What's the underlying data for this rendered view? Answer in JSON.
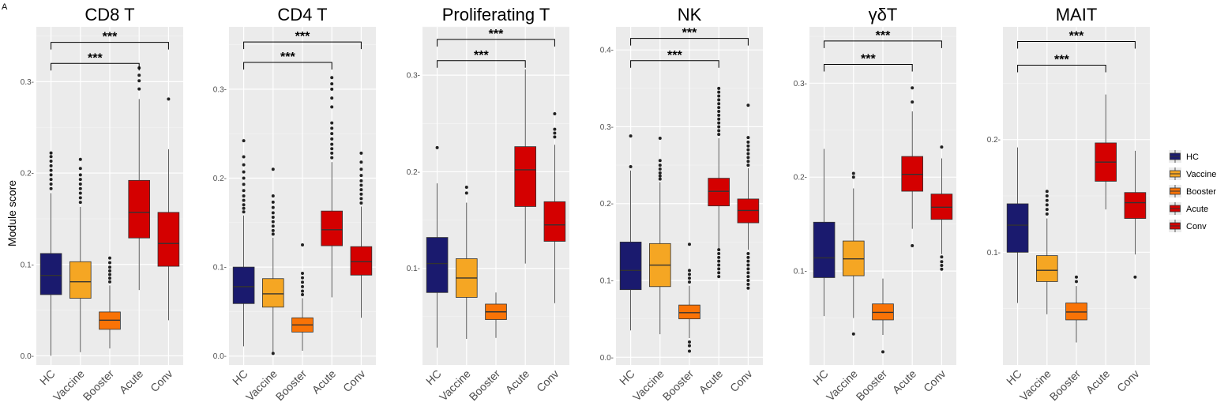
{
  "figure": {
    "panel_letter": "A",
    "ylabel": "Module score"
  },
  "colors": {
    "HC": "#1a1a6e",
    "Vaccine": "#f5a623",
    "Booster": "#f97306",
    "Acute": "#d40000",
    "Conv": "#d40000"
  },
  "legend": [
    "HC",
    "Vaccine",
    "Booster",
    "Acute",
    "Conv"
  ],
  "chart_data": [
    {
      "type": "boxplot",
      "title": "CD8 T",
      "categories": [
        "HC",
        "Vaccine",
        "Booster",
        "Acute",
        "Conv"
      ],
      "ylim": [
        -0.01,
        0.36
      ],
      "yticks": [
        0.0,
        0.1,
        0.2,
        0.3
      ],
      "ytick_labels": [
        "0.0-",
        "0.1-",
        "0.2-",
        "0.3-"
      ],
      "boxes": [
        {
          "lo": 0.0,
          "q1": 0.067,
          "med": 0.088,
          "q3": 0.112,
          "hi": 0.178,
          "outliers": [
            0.183,
            0.188,
            0.193,
            0.198,
            0.203,
            0.208,
            0.213,
            0.218,
            0.222
          ]
        },
        {
          "lo": 0.004,
          "q1": 0.063,
          "med": 0.081,
          "q3": 0.103,
          "hi": 0.163,
          "outliers": [
            0.168,
            0.173,
            0.178,
            0.183,
            0.188,
            0.193,
            0.198,
            0.205,
            0.215
          ]
        },
        {
          "lo": 0.008,
          "q1": 0.029,
          "med": 0.039,
          "q3": 0.048,
          "hi": 0.077,
          "outliers": [
            0.081,
            0.085,
            0.089,
            0.093,
            0.097,
            0.102,
            0.107
          ]
        },
        {
          "lo": 0.072,
          "q1": 0.129,
          "med": 0.157,
          "q3": 0.192,
          "hi": 0.281,
          "outliers": [
            0.292,
            0.301,
            0.307,
            0.315
          ]
        },
        {
          "lo": 0.039,
          "q1": 0.098,
          "med": 0.123,
          "q3": 0.157,
          "hi": 0.226,
          "outliers": [
            0.281
          ]
        }
      ],
      "brackets": [
        {
          "from": 0,
          "to": 4,
          "y": 0.343,
          "label": "***"
        },
        {
          "from": 0,
          "to": 3,
          "y": 0.32,
          "label": "***"
        }
      ]
    },
    {
      "type": "boxplot",
      "title": "CD4 T",
      "categories": [
        "HC",
        "Vaccine",
        "Booster",
        "Acute",
        "Conv"
      ],
      "ylim": [
        -0.01,
        0.37
      ],
      "yticks": [
        0.0,
        0.1,
        0.2,
        0.3
      ],
      "ytick_labels": [
        "0.0-",
        "0.1-",
        "0.2-",
        "0.3-"
      ],
      "boxes": [
        {
          "lo": 0.011,
          "q1": 0.059,
          "med": 0.078,
          "q3": 0.1,
          "hi": 0.158,
          "outliers": [
            0.162,
            0.166,
            0.17,
            0.175,
            0.18,
            0.186,
            0.193,
            0.2,
            0.207,
            0.215,
            0.224,
            0.242
          ]
        },
        {
          "lo": 0.004,
          "q1": 0.055,
          "med": 0.07,
          "q3": 0.087,
          "hi": 0.133,
          "outliers": [
            0.137,
            0.141,
            0.146,
            0.151,
            0.156,
            0.161,
            0.167,
            0.173,
            0.18,
            0.21,
            0.003
          ]
        },
        {
          "lo": 0.006,
          "q1": 0.027,
          "med": 0.035,
          "q3": 0.043,
          "hi": 0.065,
          "outliers": [
            0.069,
            0.073,
            0.078,
            0.083,
            0.088,
            0.093,
            0.125
          ]
        },
        {
          "lo": 0.066,
          "q1": 0.124,
          "med": 0.142,
          "q3": 0.163,
          "hi": 0.218,
          "outliers": [
            0.223,
            0.228,
            0.233,
            0.238,
            0.244,
            0.25,
            0.256,
            0.262,
            0.28,
            0.29,
            0.3,
            0.306,
            0.313
          ]
        },
        {
          "lo": 0.043,
          "q1": 0.091,
          "med": 0.106,
          "q3": 0.123,
          "hi": 0.168,
          "outliers": [
            0.172,
            0.177,
            0.182,
            0.187,
            0.192,
            0.197,
            0.203,
            0.21,
            0.218,
            0.228
          ]
        }
      ],
      "brackets": [
        {
          "from": 0,
          "to": 4,
          "y": 0.353,
          "label": "***"
        },
        {
          "from": 0,
          "to": 3,
          "y": 0.33,
          "label": "***"
        }
      ]
    },
    {
      "type": "boxplot",
      "title": "Proliferating T",
      "categories": [
        "HC",
        "Vaccine",
        "Booster",
        "Acute",
        "Conv"
      ],
      "ylim": [
        0.0,
        0.35
      ],
      "yticks": [
        0.1,
        0.2,
        0.3
      ],
      "ytick_labels": [
        "0.1-",
        "0.2-",
        "0.3-"
      ],
      "boxes": [
        {
          "lo": 0.018,
          "q1": 0.075,
          "med": 0.105,
          "q3": 0.132,
          "hi": 0.188,
          "outliers": [
            0.225
          ]
        },
        {
          "lo": 0.027,
          "q1": 0.07,
          "med": 0.09,
          "q3": 0.11,
          "hi": 0.168,
          "outliers": [
            0.178,
            0.184
          ]
        },
        {
          "lo": 0.028,
          "q1": 0.047,
          "med": 0.055,
          "q3": 0.063,
          "hi": 0.075,
          "outliers": []
        },
        {
          "lo": 0.105,
          "q1": 0.164,
          "med": 0.202,
          "q3": 0.226,
          "hi": 0.306,
          "outliers": []
        },
        {
          "lo": 0.064,
          "q1": 0.128,
          "med": 0.145,
          "q3": 0.169,
          "hi": 0.228,
          "outliers": [
            0.236,
            0.24,
            0.244,
            0.26
          ]
        }
      ],
      "brackets": [
        {
          "from": 0,
          "to": 4,
          "y": 0.337,
          "label": "***"
        },
        {
          "from": 0,
          "to": 3,
          "y": 0.315,
          "label": "***"
        }
      ]
    },
    {
      "type": "boxplot",
      "title": "NK",
      "categories": [
        "HC",
        "Vaccine",
        "Booster",
        "Acute",
        "Conv"
      ],
      "ylim": [
        -0.01,
        0.43
      ],
      "yticks": [
        0.0,
        0.1,
        0.2,
        0.3,
        0.4
      ],
      "ytick_labels": [
        "0.0-",
        "0.1-",
        "0.2-",
        "0.3-",
        "0.4-"
      ],
      "boxes": [
        {
          "lo": 0.035,
          "q1": 0.088,
          "med": 0.113,
          "q3": 0.15,
          "hi": 0.243,
          "outliers": [
            0.248,
            0.288
          ]
        },
        {
          "lo": 0.03,
          "q1": 0.092,
          "med": 0.12,
          "q3": 0.148,
          "hi": 0.228,
          "outliers": [
            0.232,
            0.236,
            0.24,
            0.245,
            0.25,
            0.256,
            0.285
          ]
        },
        {
          "lo": 0.025,
          "q1": 0.05,
          "med": 0.058,
          "q3": 0.068,
          "hi": 0.093,
          "outliers": [
            0.098,
            0.103,
            0.108,
            0.113,
            0.147,
            0.02,
            0.015,
            0.008
          ]
        },
        {
          "lo": 0.14,
          "q1": 0.197,
          "med": 0.216,
          "q3": 0.233,
          "hi": 0.285,
          "outliers": [
            0.29,
            0.295,
            0.3,
            0.305,
            0.31,
            0.315,
            0.32,
            0.325,
            0.33,
            0.335,
            0.34,
            0.345,
            0.35,
            0.14,
            0.135,
            0.13,
            0.125,
            0.12,
            0.115,
            0.11,
            0.105
          ]
        },
        {
          "lo": 0.14,
          "q1": 0.175,
          "med": 0.191,
          "q3": 0.206,
          "hi": 0.246,
          "outliers": [
            0.25,
            0.255,
            0.26,
            0.265,
            0.27,
            0.275,
            0.28,
            0.286,
            0.328,
            0.135,
            0.13,
            0.125,
            0.12,
            0.115,
            0.11,
            0.105,
            0.1,
            0.095,
            0.09
          ]
        }
      ],
      "brackets": [
        {
          "from": 0,
          "to": 4,
          "y": 0.415,
          "label": "***"
        },
        {
          "from": 0,
          "to": 3,
          "y": 0.386,
          "label": "***"
        }
      ]
    },
    {
      "type": "boxplot",
      "title": "γδT",
      "categories": [
        "HC",
        "Vaccine",
        "Booster",
        "Acute",
        "Conv"
      ],
      "ylim": [
        0.0,
        0.36
      ],
      "yticks": [
        0.1,
        0.2,
        0.3
      ],
      "ytick_labels": [
        "0.1-",
        "0.2-",
        "0.3-"
      ],
      "boxes": [
        {
          "lo": 0.052,
          "q1": 0.093,
          "med": 0.114,
          "q3": 0.152,
          "hi": 0.23,
          "outliers": []
        },
        {
          "lo": 0.05,
          "q1": 0.095,
          "med": 0.113,
          "q3": 0.132,
          "hi": 0.188,
          "outliers": [
            0.2,
            0.204,
            0.033
          ]
        },
        {
          "lo": 0.032,
          "q1": 0.048,
          "med": 0.056,
          "q3": 0.065,
          "hi": 0.092,
          "outliers": [
            0.014
          ]
        },
        {
          "lo": 0.145,
          "q1": 0.185,
          "med": 0.203,
          "q3": 0.222,
          "hi": 0.27,
          "outliers": [
            0.28,
            0.295,
            0.127
          ]
        },
        {
          "lo": 0.118,
          "q1": 0.155,
          "med": 0.168,
          "q3": 0.182,
          "hi": 0.22,
          "outliers": [
            0.232,
            0.115,
            0.11,
            0.106,
            0.102
          ]
        }
      ],
      "brackets": [
        {
          "from": 0,
          "to": 4,
          "y": 0.345,
          "label": "***"
        },
        {
          "from": 0,
          "to": 3,
          "y": 0.32,
          "label": "***"
        }
      ]
    },
    {
      "type": "boxplot",
      "title": "MAIT",
      "categories": [
        "HC",
        "Vaccine",
        "Booster",
        "Acute",
        "Conv"
      ],
      "ylim": [
        0.0,
        0.3
      ],
      "yticks": [
        0.1,
        0.2
      ],
      "ytick_labels": [
        "0.1-",
        "0.2-"
      ],
      "boxes": [
        {
          "lo": 0.055,
          "q1": 0.1,
          "med": 0.124,
          "q3": 0.143,
          "hi": 0.193,
          "outliers": []
        },
        {
          "lo": 0.045,
          "q1": 0.074,
          "med": 0.084,
          "q3": 0.097,
          "hi": 0.13,
          "outliers": [
            0.134,
            0.138,
            0.142,
            0.146,
            0.15,
            0.154
          ]
        },
        {
          "lo": 0.02,
          "q1": 0.04,
          "med": 0.047,
          "q3": 0.055,
          "hi": 0.07,
          "outliers": [
            0.074,
            0.078
          ]
        },
        {
          "lo": 0.138,
          "q1": 0.163,
          "med": 0.18,
          "q3": 0.197,
          "hi": 0.24,
          "outliers": []
        },
        {
          "lo": 0.098,
          "q1": 0.13,
          "med": 0.144,
          "q3": 0.153,
          "hi": 0.19,
          "outliers": [
            0.078
          ]
        }
      ],
      "brackets": [
        {
          "from": 0,
          "to": 4,
          "y": 0.287,
          "label": "***"
        },
        {
          "from": 0,
          "to": 3,
          "y": 0.266,
          "label": "***"
        }
      ]
    }
  ]
}
